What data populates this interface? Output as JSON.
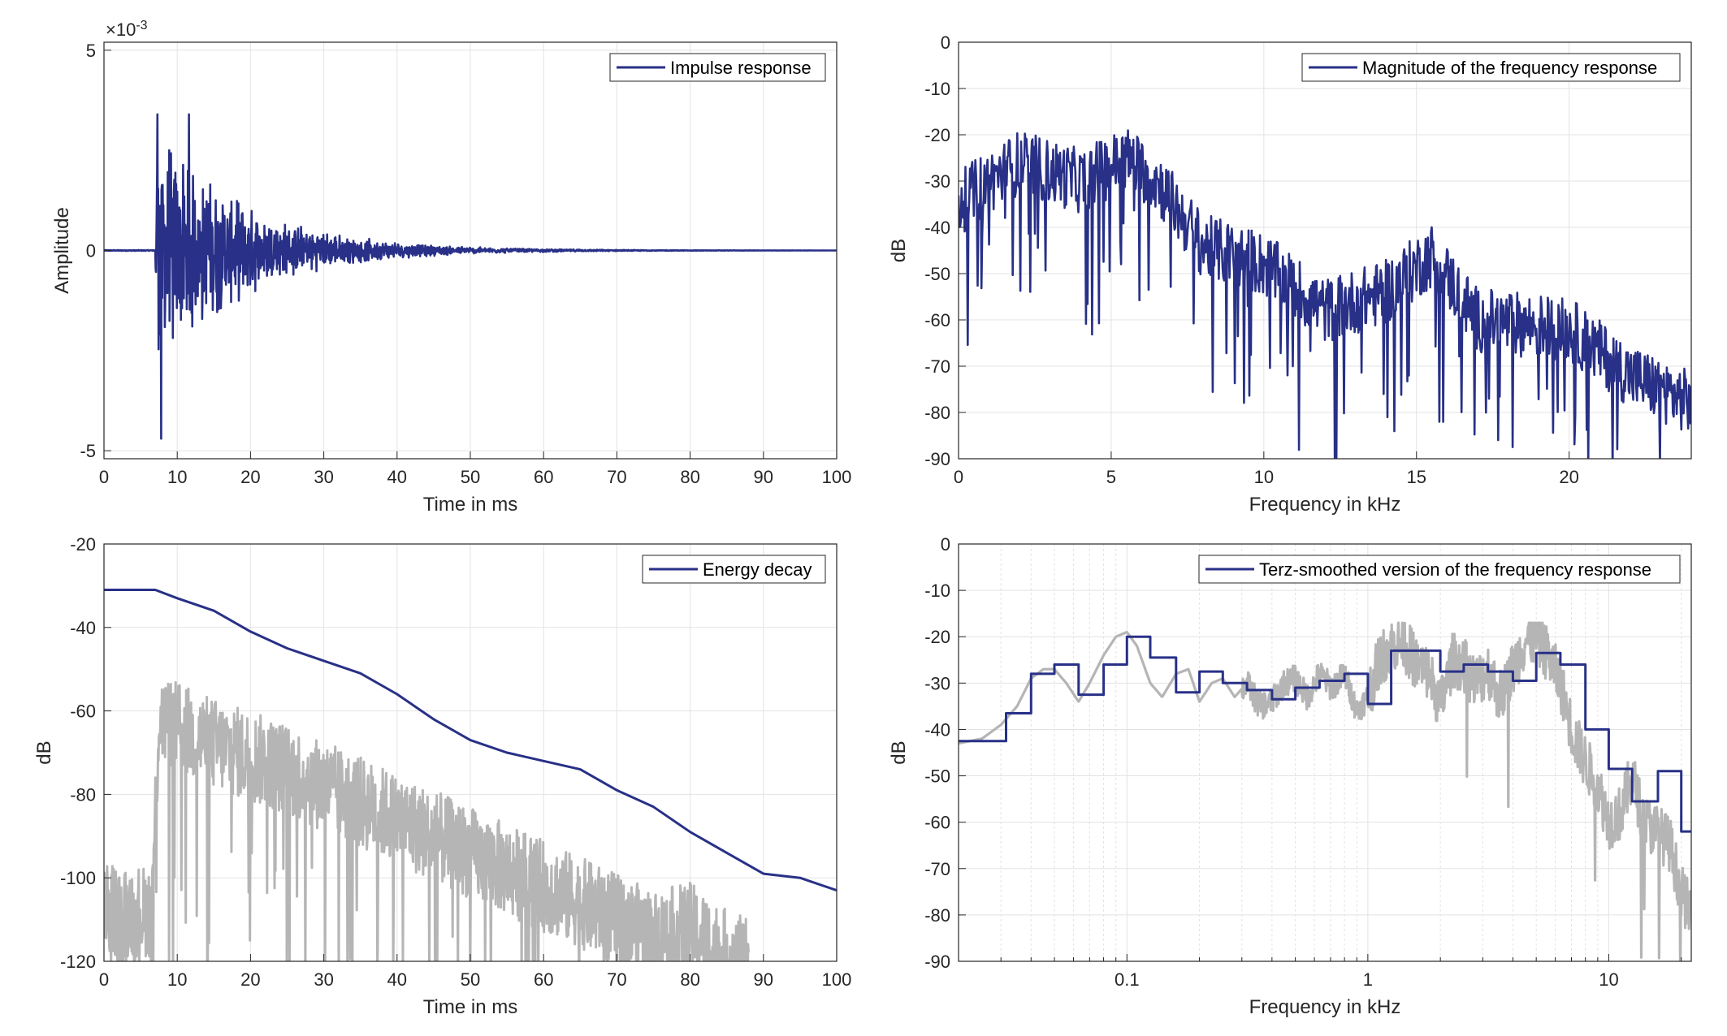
{
  "colors": {
    "series": "#283087",
    "reference": "#b5b5b5",
    "grid": "#e3e3e3",
    "axis": "#262626"
  },
  "chart_data": [
    {
      "type": "line",
      "id": "impulse",
      "xlabel": "Time in ms",
      "ylabel": "Amplitude",
      "exponent": "×10-3",
      "xlim": [
        0,
        100
      ],
      "ylim": [
        -5.2,
        5.2
      ],
      "xticks": [
        0,
        10,
        20,
        30,
        40,
        50,
        60,
        70,
        80,
        90,
        100
      ],
      "xticklabels": [
        "0",
        "10",
        "20",
        "30",
        "40",
        "50",
        "60",
        "70",
        "80",
        "90",
        "100"
      ],
      "yticks": [
        -5,
        0,
        5
      ],
      "yticklabels": [
        "-5",
        "0",
        "5"
      ],
      "grid": true,
      "legend_position": "top-right",
      "series": [
        {
          "name": "Impulse response",
          "color": "#283087",
          "onset_ms": 7,
          "peak_max": 3.4,
          "peak_min": -4.7,
          "decay_ms": 12
        }
      ]
    },
    {
      "type": "line",
      "id": "magnitude",
      "xlabel": "Frequency in kHz",
      "ylabel": "dB",
      "xlim": [
        0,
        24
      ],
      "ylim": [
        -90,
        0
      ],
      "xticks": [
        0,
        5,
        10,
        15,
        20
      ],
      "xticklabels": [
        "0",
        "5",
        "10",
        "15",
        "20"
      ],
      "yticks": [
        0,
        -10,
        -20,
        -30,
        -40,
        -50,
        -60,
        -70,
        -80,
        -90
      ],
      "yticklabels": [
        "0",
        "-10",
        "-20",
        "-30",
        "-40",
        "-50",
        "-60",
        "-70",
        "-80",
        "-90"
      ],
      "grid": true,
      "legend_position": "top-right",
      "series": [
        {
          "name": "Magnitude of the frequency response",
          "color": "#283087",
          "envelope": {
            "x": [
              0,
              1,
              2,
              4,
              5.5,
              6.5,
              8,
              10,
              12,
              14,
              15.5,
              17,
              20,
              22,
              24
            ],
            "y": [
              -35,
              -30,
              -26,
              -30,
              -25,
              -30,
              -44,
              -48,
              -58,
              -54,
              -46,
              -60,
              -62,
              -72,
              -78
            ]
          }
        }
      ]
    },
    {
      "type": "line",
      "id": "energy",
      "xlabel": "Time in ms",
      "ylabel": "dB",
      "xlim": [
        0,
        100
      ],
      "ylim": [
        -120,
        -20
      ],
      "xticks": [
        0,
        10,
        20,
        30,
        40,
        50,
        60,
        70,
        80,
        90,
        100
      ],
      "xticklabels": [
        "0",
        "10",
        "20",
        "30",
        "40",
        "50",
        "60",
        "70",
        "80",
        "90",
        "100"
      ],
      "yticks": [
        -20,
        -40,
        -60,
        -80,
        -100,
        -120
      ],
      "yticklabels": [
        "-20",
        "-40",
        "-60",
        "-80",
        "-100",
        "-120"
      ],
      "grid": true,
      "legend_position": "top-right",
      "series": [
        {
          "name": "Energy decay",
          "color": "#283087",
          "x": [
            0,
            7,
            10,
            15,
            20,
            25,
            30,
            35,
            40,
            45,
            50,
            55,
            60,
            65,
            70,
            75,
            80,
            85,
            90,
            95,
            100
          ],
          "y": [
            -31,
            -31,
            -33,
            -36,
            -41,
            -45,
            -48,
            -51,
            -56,
            -62,
            -67,
            -70,
            -72,
            -74,
            -79,
            -83,
            -89,
            -94,
            -99,
            -100,
            -103
          ]
        }
      ],
      "reference": {
        "color": "#b5b5b5",
        "envelope": {
          "x": [
            0,
            6.5,
            7.5,
            15,
            25,
            35,
            45,
            55,
            65,
            75,
            80,
            86
          ],
          "y": [
            -108,
            -108,
            -62,
            -68,
            -74,
            -82,
            -90,
            -98,
            -106,
            -114,
            -112,
            -120
          ]
        }
      }
    },
    {
      "type": "line",
      "id": "terz",
      "xlabel": "Frequency in kHz",
      "ylabel": "dB",
      "xscale": "log",
      "xlim": [
        0.02,
        22
      ],
      "ylim": [
        -90,
        0
      ],
      "xticks": [
        0.1,
        1,
        10
      ],
      "xticklabels": [
        "0.1",
        "1",
        "10"
      ],
      "yticks": [
        0,
        -10,
        -20,
        -30,
        -40,
        -50,
        -60,
        -70,
        -80,
        -90
      ],
      "yticklabels": [
        "0",
        "-10",
        "-20",
        "-30",
        "-40",
        "-50",
        "-60",
        "-70",
        "-80",
        "-90"
      ],
      "grid": true,
      "legend_position": "top-right",
      "series": [
        {
          "name": "Terz-smoothed version of the frequency response",
          "color": "#283087",
          "x": [
            0.02,
            0.0315,
            0.04,
            0.05,
            0.063,
            0.08,
            0.1,
            0.125,
            0.16,
            0.2,
            0.25,
            0.315,
            0.4,
            0.5,
            0.63,
            0.8,
            1.0,
            1.25,
            1.6,
            2.0,
            2.5,
            3.15,
            4.0,
            5.0,
            6.3,
            8.0,
            10.0,
            12.5,
            16.0,
            20.0
          ],
          "y": [
            -42.5,
            -36.5,
            -28,
            -26,
            -32.5,
            -26,
            -20,
            -24.5,
            -32,
            -27.5,
            -30,
            -31.5,
            -33.5,
            -31,
            -29.5,
            -28,
            -34.5,
            -23,
            -23,
            -27.5,
            -26,
            -27.5,
            -29.5,
            -23.5,
            -26,
            -40,
            -48.5,
            -55.5,
            -49,
            -62
          ]
        }
      ],
      "reference": {
        "color": "#b5b5b5",
        "x": [
          0.02,
          0.025,
          0.03,
          0.035,
          0.04,
          0.045,
          0.05,
          0.056,
          0.063,
          0.07,
          0.08,
          0.09,
          0.1,
          0.11,
          0.125,
          0.14,
          0.16,
          0.18,
          0.2,
          0.225,
          0.25,
          0.28,
          0.315,
          0.355,
          0.4,
          0.45,
          0.5,
          0.56,
          0.63,
          0.71,
          0.8,
          0.9,
          1.0,
          1.12,
          1.25,
          1.4,
          1.6,
          1.8,
          2.0,
          2.25,
          2.5,
          2.8,
          3.15,
          3.55,
          4.0,
          4.5,
          5.0,
          5.6,
          6.3,
          7.1,
          8.0,
          9.0,
          10.0,
          11.2,
          12.5,
          14.0,
          16.0,
          18.0,
          20.0,
          22.0
        ],
        "y": [
          -43,
          -42,
          -39,
          -35,
          -29,
          -27,
          -27,
          -30,
          -34,
          -30,
          -24,
          -20,
          -19,
          -22,
          -30,
          -33,
          -28,
          -27,
          -34,
          -30,
          -29,
          -33,
          -30,
          -35,
          -34,
          -30,
          -29,
          -33,
          -28,
          -31,
          -28,
          -36,
          -33,
          -25,
          -22,
          -21,
          -26,
          -28,
          -35,
          -25,
          -26,
          -30,
          -27,
          -33,
          -27,
          -21,
          -20,
          -24,
          -30,
          -41,
          -47,
          -52,
          -60,
          -58,
          -50,
          -60,
          -62,
          -65,
          -75,
          -80
        ]
      }
    }
  ]
}
